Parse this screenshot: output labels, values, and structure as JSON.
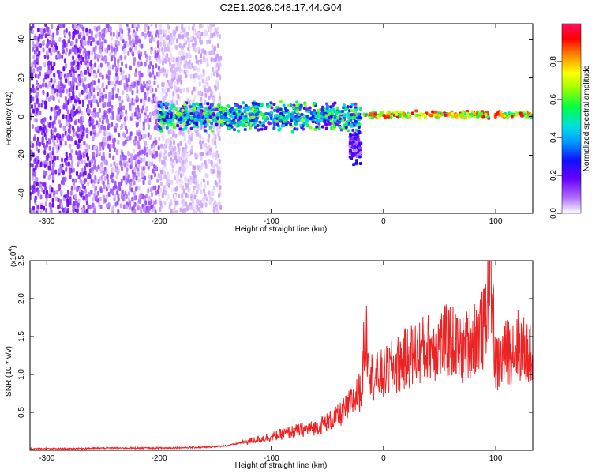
{
  "title": "C2E1.2026.048.17.44.G04",
  "chart_data": [
    {
      "type": "heatmap",
      "xlabel": "Height of straight line (km)",
      "ylabel": "Frequency (Hz)",
      "xlim": [
        -315,
        133
      ],
      "ylim": [
        -50,
        48
      ],
      "x_ticks": [
        -300,
        -200,
        -100,
        0,
        100
      ],
      "y_ticks": [
        40,
        20,
        0,
        -20,
        -40
      ],
      "colorbar": {
        "label": "Normalized spectral amplitude",
        "range": [
          0,
          1
        ],
        "ticks": [
          0.0,
          0.2,
          0.4,
          0.6,
          0.8
        ],
        "tick_labels": [
          "0.0",
          "0.2",
          "0.4",
          "0.6",
          "0.8"
        ]
      },
      "features": [
        {
          "name": "noise-dense",
          "x_range": [
            -315,
            -260
          ],
          "f_range": [
            -50,
            48
          ],
          "amplitude": 0.12
        },
        {
          "name": "noise-medium",
          "x_range": [
            -260,
            -200
          ],
          "f_range": [
            -50,
            48
          ],
          "amplitude": 0.08
        },
        {
          "name": "noise-sparse",
          "x_range": [
            -200,
            -145
          ],
          "f_range": [
            -50,
            48
          ],
          "amplitude": 0.04
        },
        {
          "name": "band-broad",
          "x_range": [
            -200,
            -20
          ],
          "f_center": 0,
          "f_halfwidth": 8,
          "amplitude": 0.45
        },
        {
          "name": "band-tail",
          "x_range": [
            -30,
            -20
          ],
          "f_center": -15,
          "f_halfwidth": 10,
          "amplitude": 0.2
        },
        {
          "name": "line-narrow",
          "x_range": [
            -20,
            133
          ],
          "f_center": 1,
          "f_halfwidth": 2,
          "amplitude": 0.85
        }
      ]
    },
    {
      "type": "line",
      "xlabel": "Height of straight line (km)",
      "ylabel": "SNR (10 * v/v)",
      "multiplier_label": "(x10",
      "multiplier_exponent": "4",
      "multiplier_close": ")",
      "xlim": [
        -315,
        133
      ],
      "ylim": [
        0,
        2.5
      ],
      "x_ticks": [
        -300,
        -200,
        -100,
        0,
        100
      ],
      "y_ticks": [
        0.5,
        1.0,
        1.5,
        2.0,
        2.5
      ],
      "y_tick_labels": [
        "0.5",
        "1.0",
        "1.5",
        "2.0",
        "2.5"
      ],
      "color": "#ee2222",
      "series": [
        {
          "name": "SNR",
          "x": [
            -315,
            -280,
            -250,
            -200,
            -160,
            -140,
            -120,
            -100,
            -80,
            -60,
            -40,
            -30,
            -20,
            -16,
            -10,
            0,
            10,
            20,
            30,
            40,
            50,
            60,
            70,
            80,
            90,
            95,
            100,
            110,
            120,
            133
          ],
          "values": [
            0.02,
            0.02,
            0.03,
            0.03,
            0.04,
            0.06,
            0.12,
            0.18,
            0.25,
            0.3,
            0.45,
            0.6,
            0.8,
            1.6,
            0.95,
            1.0,
            1.1,
            1.2,
            1.3,
            1.35,
            1.4,
            1.45,
            1.3,
            1.5,
            1.6,
            2.45,
            1.1,
            1.3,
            1.4,
            1.2
          ]
        }
      ]
    }
  ]
}
